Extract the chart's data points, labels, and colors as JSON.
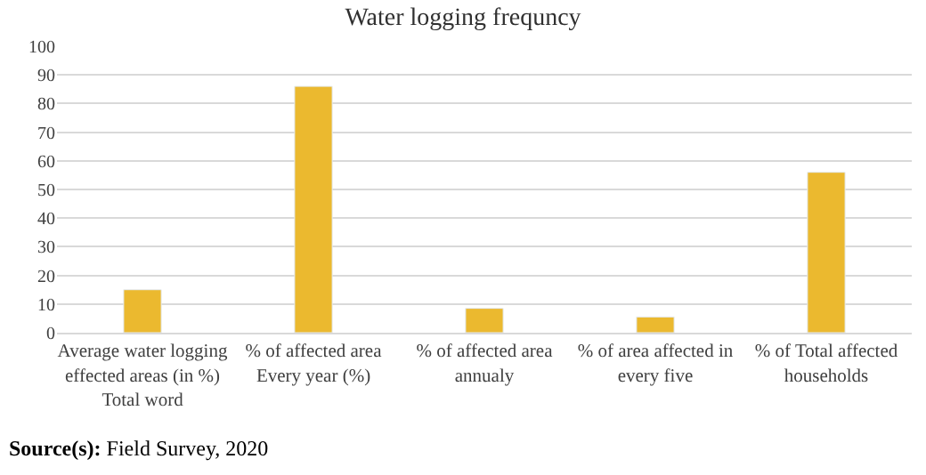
{
  "chart_data": {
    "type": "bar",
    "title": "Water logging frequncy",
    "categories": [
      "Average water logging effected areas (in %) Total word",
      "% of affected area Every year (%)",
      "% of affected area annualy",
      "% of area affected in every five",
      "% of Total affected households"
    ],
    "values": [
      15,
      86,
      8.5,
      5.5,
      56
    ],
    "color": "#ebb92f",
    "ylim": [
      0,
      100
    ],
    "yticks": [
      0,
      10,
      20,
      30,
      40,
      50,
      60,
      70,
      80,
      90,
      100
    ],
    "grid": "y",
    "annotations": [
      "Source(s): Field Survey, 2020"
    ]
  }
}
